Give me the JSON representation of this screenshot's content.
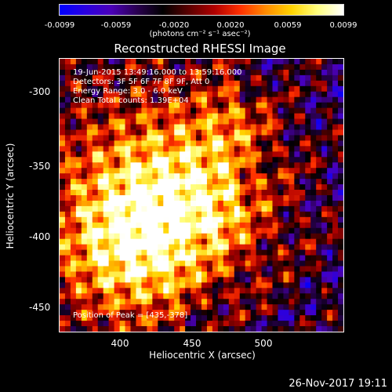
{
  "colorbar": {
    "ticks": [
      "-0.0099",
      "-0.0059",
      "-0.0020",
      "0.0020",
      "0.0059",
      "0.0099"
    ],
    "unit": "(photons cm⁻² s⁻¹ asec⁻²)"
  },
  "title": "Reconstructed RHESSI Image",
  "annotations": {
    "time_range": "19-Jun-2015 13:49:16.000 to 13:59:16.000",
    "detectors": "Detectors: 3F 5F 6F 7F 8F 9F, Att 0",
    "energy": "Energy Range: 3.0 - 6.0 keV",
    "clean": "Clean    Total counts: 1.39E+04",
    "peak": "Position of Peak = [435,-378]"
  },
  "axes": {
    "xlabel": "Heliocentric X (arcsec)",
    "ylabel": "Heliocentric Y (arcsec)",
    "xticks": [
      "400",
      "450",
      "500"
    ],
    "yticks": [
      "-300",
      "-350",
      "-400",
      "-450"
    ]
  },
  "timestamp": "26-Nov-2017 19:11",
  "colors": {
    "cmap": [
      "#0000ff",
      "#2a00e0",
      "#4b00b8",
      "#2a0050",
      "#000000",
      "#5a0000",
      "#b00000",
      "#ff3000",
      "#ff8c00",
      "#ffd400",
      "#ffff80",
      "#ffffff"
    ]
  }
}
